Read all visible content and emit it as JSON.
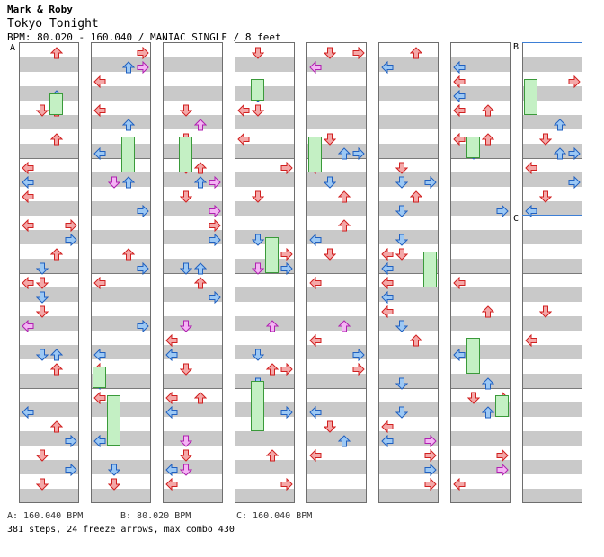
{
  "chart": {
    "artist": "Mark & Roby",
    "title": "Tokyo Tonight",
    "info": "BPM: 80.020 - 160.040 / MANIAC SINGLE / 8 feet"
  },
  "bpm_markers": {
    "a": "A",
    "b": "B",
    "c": "C"
  },
  "legend": {
    "a": "A: 160.040 BPM",
    "b": "B: 80.020 BPM",
    "c": "C: 160.040 BPM"
  },
  "stats": "381 steps, 24 freeze arrows, max combo 430",
  "colors": {
    "quarter_note": "#f4a8a8",
    "eighth_note": "#9cc8f4",
    "sixteenth_note": "#f4b4f4",
    "freeze_body": "#c4f0c4",
    "stripe": "#c9c9c9",
    "bpm_change_line": "#3d7fd6"
  },
  "icons": [
    "left-arrow-icon",
    "down-arrow-icon",
    "up-arrow-icon",
    "right-arrow-icon",
    "freeze-arrow-icon"
  ]
}
